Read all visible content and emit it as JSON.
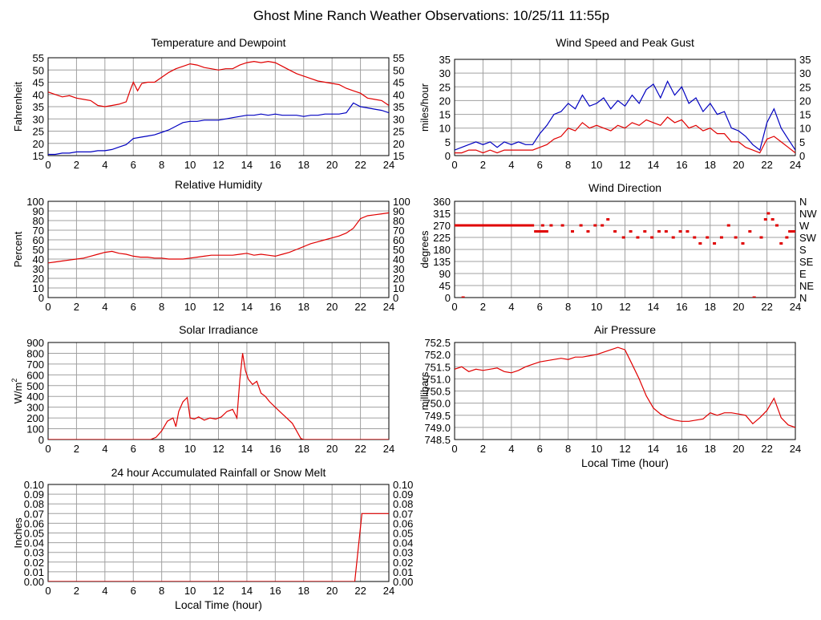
{
  "page_title": "Ghost Mine Ranch Weather Observations: 10/25/11 11:55p",
  "colors": {
    "grid": "#a0a0a0",
    "series_red": "#e00000",
    "series_blue": "#0000c0",
    "frame": "#000000"
  },
  "chart_data": [
    {
      "id": "temp",
      "type": "line",
      "title": "Temperature and Dewpoint",
      "xlabel": "",
      "ylabel": "Fahrenheit",
      "xlim": [
        0,
        24
      ],
      "ylim": [
        15,
        55
      ],
      "xticks": [
        0,
        2,
        4,
        6,
        8,
        10,
        12,
        14,
        16,
        18,
        20,
        22,
        24
      ],
      "yticks": [
        15,
        20,
        25,
        30,
        35,
        40,
        45,
        50,
        55
      ],
      "right_axis": true,
      "series": [
        {
          "color": "#e00000",
          "x": [
            0,
            0.5,
            1,
            1.5,
            2,
            2.5,
            3,
            3.5,
            4,
            4.5,
            5,
            5.5,
            5.8,
            6,
            6.3,
            6.6,
            7,
            7.5,
            8,
            8.5,
            9,
            9.5,
            10,
            10.5,
            11,
            11.5,
            12,
            12.5,
            13,
            13.5,
            14,
            14.5,
            15,
            15.5,
            16,
            16.5,
            17,
            17.5,
            18,
            18.5,
            19,
            19.5,
            20,
            20.5,
            21,
            21.5,
            22,
            22.5,
            23,
            23.5,
            24
          ],
          "values": [
            41,
            40,
            39,
            39.5,
            38.5,
            38,
            37.5,
            35.5,
            35,
            35.5,
            36,
            37,
            42,
            45,
            41.5,
            44.5,
            45,
            45,
            47,
            49,
            50.5,
            51.5,
            52.5,
            52,
            51,
            50.5,
            50,
            50.5,
            50.5,
            52,
            53,
            53.5,
            53,
            53.5,
            53,
            51.5,
            50,
            48.5,
            47.5,
            46.5,
            45.5,
            45,
            44.5,
            44,
            42.5,
            41.5,
            40.5,
            38.5,
            38,
            37.5,
            35.5
          ]
        },
        {
          "color": "#0000c0",
          "x": [
            0,
            0.5,
            1,
            1.5,
            2,
            2.5,
            3,
            3.5,
            4,
            4.5,
            5,
            5.5,
            6,
            6.5,
            7,
            7.5,
            8,
            8.5,
            9,
            9.5,
            10,
            10.5,
            11,
            11.5,
            12,
            12.5,
            13,
            13.5,
            14,
            14.5,
            15,
            15.5,
            16,
            16.5,
            17,
            17.5,
            18,
            18.5,
            19,
            19.5,
            20,
            20.5,
            21,
            21.5,
            22,
            22.5,
            23,
            23.5,
            24
          ],
          "values": [
            15.5,
            15.5,
            16,
            16,
            16.5,
            16.5,
            16.5,
            17,
            17,
            17.5,
            18.5,
            19.5,
            22,
            22.5,
            23,
            23.5,
            24.5,
            25.5,
            27,
            28.5,
            29,
            29,
            29.5,
            29.5,
            29.5,
            30,
            30.5,
            31,
            31.5,
            31.5,
            32,
            31.5,
            32,
            31.5,
            31.5,
            31.5,
            31,
            31.5,
            31.5,
            32,
            32,
            32,
            32.5,
            36.5,
            35,
            34.5,
            34,
            33.5,
            32.5
          ]
        }
      ]
    },
    {
      "id": "wind",
      "type": "line",
      "title": "Wind Speed and Peak Gust",
      "xlabel": "",
      "ylabel": "miles/hour",
      "xlim": [
        0,
        24
      ],
      "ylim": [
        0,
        35
      ],
      "xticks": [
        0,
        2,
        4,
        6,
        8,
        10,
        12,
        14,
        16,
        18,
        20,
        22,
        24
      ],
      "yticks": [
        0,
        5,
        10,
        15,
        20,
        25,
        30,
        35
      ],
      "right_axis": true,
      "series": [
        {
          "color": "#0000c0",
          "x": [
            0,
            0.5,
            1,
            1.5,
            2,
            2.5,
            3,
            3.5,
            4,
            4.5,
            5,
            5.5,
            6,
            6.5,
            7,
            7.5,
            8,
            8.5,
            9,
            9.5,
            10,
            10.5,
            11,
            11.5,
            12,
            12.5,
            13,
            13.5,
            14,
            14.5,
            15,
            15.5,
            16,
            16.5,
            17,
            17.5,
            18,
            18.5,
            19,
            19.5,
            20,
            20.5,
            21,
            21.5,
            22,
            22.5,
            23,
            23.5,
            24
          ],
          "values": [
            2,
            3,
            4,
            5,
            4,
            5,
            3,
            5,
            4,
            5,
            4,
            4,
            8,
            11,
            15,
            16,
            19,
            17,
            22,
            18,
            19,
            21,
            17,
            20,
            18,
            22,
            19,
            24,
            26,
            21,
            27,
            22,
            25,
            19,
            21,
            16,
            19,
            15,
            16,
            10,
            9,
            7,
            4,
            2,
            12,
            17,
            10,
            6,
            2
          ]
        },
        {
          "color": "#e00000",
          "x": [
            0,
            0.5,
            1,
            1.5,
            2,
            2.5,
            3,
            3.5,
            4,
            4.5,
            5,
            5.5,
            6,
            6.5,
            7,
            7.5,
            8,
            8.5,
            9,
            9.5,
            10,
            10.5,
            11,
            11.5,
            12,
            12.5,
            13,
            13.5,
            14,
            14.5,
            15,
            15.5,
            16,
            16.5,
            17,
            17.5,
            18,
            18.5,
            19,
            19.5,
            20,
            20.5,
            21,
            21.5,
            22,
            22.5,
            23,
            23.5,
            24
          ],
          "values": [
            1,
            1,
            2,
            2,
            1,
            2,
            1,
            2,
            2,
            2,
            2,
            2,
            3,
            4,
            6,
            7,
            10,
            9,
            12,
            10,
            11,
            10,
            9,
            11,
            10,
            12,
            11,
            13,
            12,
            11,
            14,
            12,
            13,
            10,
            11,
            9,
            10,
            8,
            8,
            5,
            5,
            3,
            2,
            1,
            6,
            7,
            5,
            3,
            1
          ]
        }
      ]
    },
    {
      "id": "rh",
      "type": "line",
      "title": "Relative Humidity",
      "xlabel": "",
      "ylabel": "Percent",
      "xlim": [
        0,
        24
      ],
      "ylim": [
        0,
        100
      ],
      "xticks": [
        0,
        2,
        4,
        6,
        8,
        10,
        12,
        14,
        16,
        18,
        20,
        22,
        24
      ],
      "yticks": [
        0,
        10,
        20,
        30,
        40,
        50,
        60,
        70,
        80,
        90,
        100
      ],
      "right_axis": true,
      "series": [
        {
          "color": "#e00000",
          "x": [
            0,
            0.5,
            1,
            1.5,
            2,
            2.5,
            3,
            3.5,
            4,
            4.5,
            5,
            5.5,
            6,
            6.5,
            7,
            7.5,
            8,
            8.5,
            9,
            9.5,
            10,
            10.5,
            11,
            11.5,
            12,
            12.5,
            13,
            13.5,
            14,
            14.5,
            15,
            15.5,
            16,
            16.5,
            17,
            17.5,
            18,
            18.5,
            19,
            19.5,
            20,
            20.5,
            21,
            21.5,
            22,
            22.5,
            23,
            23.5,
            24
          ],
          "values": [
            36,
            37,
            38,
            39,
            40,
            41,
            43,
            45,
            47,
            48,
            46,
            45,
            43,
            42,
            42,
            41,
            41,
            40,
            40,
            40,
            41,
            42,
            43,
            44,
            44,
            44,
            44,
            45,
            46,
            44,
            45,
            44,
            43,
            45,
            47,
            50,
            53,
            56,
            58,
            60,
            62,
            64,
            67,
            72,
            82,
            85,
            86,
            87,
            88
          ]
        }
      ]
    },
    {
      "id": "wdir",
      "type": "scatter",
      "title": "Wind Direction",
      "xlabel": "",
      "ylabel": "degrees",
      "xlim": [
        0,
        24
      ],
      "ylim": [
        0,
        360
      ],
      "xticks": [
        0,
        2,
        4,
        6,
        8,
        10,
        12,
        14,
        16,
        18,
        20,
        22,
        24
      ],
      "yticks": [
        0,
        45,
        90,
        135,
        180,
        225,
        270,
        315,
        360
      ],
      "right_tick_labels": [
        "N",
        "NE",
        "E",
        "SE",
        "S",
        "SW",
        "W",
        "NW",
        "N"
      ],
      "series": [
        {
          "color": "#e00000",
          "x": [
            0.6,
            6.2,
            6.8,
            7.6,
            8.3,
            8.9,
            9.4,
            9.9,
            10.4,
            10.8,
            11.3,
            11.9,
            12.4,
            12.9,
            13.4,
            13.9,
            14.4,
            14.9,
            15.4,
            15.9,
            16.4,
            16.9,
            17.3,
            17.8,
            18.3,
            18.8,
            19.3,
            19.8,
            20.3,
            20.8,
            21.1,
            21.6,
            21.9,
            22.1,
            22.4,
            22.7,
            23.0,
            23.4,
            23.8
          ],
          "values": [
            0,
            270,
            270,
            270,
            247.5,
            270,
            247.5,
            270,
            270,
            292.5,
            247.5,
            225,
            247.5,
            225,
            247.5,
            225,
            247.5,
            247.5,
            225,
            247.5,
            247.5,
            225,
            202.5,
            225,
            202.5,
            225,
            270,
            225,
            202.5,
            247.5,
            0,
            225,
            292.5,
            315,
            292.5,
            270,
            202.5,
            225,
            247.5
          ]
        }
      ],
      "constant_segments": [
        {
          "x0": 0,
          "x1": 5.6,
          "value": 270
        },
        {
          "x0": 5.6,
          "x1": 6.6,
          "value": 247.5
        },
        {
          "x0": 23.5,
          "x1": 24,
          "value": 247.5
        }
      ]
    },
    {
      "id": "solar",
      "type": "line",
      "title": "Solar Irradiance",
      "xlabel": "",
      "ylabel": "W/m",
      "ylabel_superscript": "2",
      "xlim": [
        0,
        24
      ],
      "ylim": [
        0,
        900
      ],
      "xticks": [
        0,
        2,
        4,
        6,
        8,
        10,
        12,
        14,
        16,
        18,
        20,
        22,
        24
      ],
      "yticks": [
        0,
        100,
        200,
        300,
        400,
        500,
        600,
        700,
        800,
        900
      ],
      "right_axis": false,
      "series": [
        {
          "color": "#e00000",
          "x": [
            0,
            7.2,
            7.6,
            8.0,
            8.4,
            8.8,
            9.0,
            9.2,
            9.5,
            9.8,
            10.0,
            10.3,
            10.6,
            11.0,
            11.4,
            11.8,
            12.2,
            12.6,
            13.0,
            13.3,
            13.5,
            13.7,
            13.9,
            14.1,
            14.4,
            14.7,
            15.0,
            15.3,
            15.6,
            16.0,
            16.4,
            16.8,
            17.2,
            17.5,
            17.8,
            18.0,
            24
          ],
          "values": [
            0,
            0,
            20,
            80,
            170,
            200,
            120,
            260,
            350,
            390,
            200,
            190,
            210,
            180,
            200,
            190,
            210,
            260,
            280,
            200,
            550,
            800,
            640,
            560,
            510,
            540,
            430,
            400,
            350,
            300,
            250,
            200,
            150,
            80,
            10,
            0,
            0
          ]
        }
      ]
    },
    {
      "id": "pressure",
      "type": "line",
      "title": "Air Pressure",
      "xlabel": "Local Time (hour)",
      "ylabel": "millibars",
      "xlim": [
        0,
        24
      ],
      "ylim": [
        748.5,
        752.5
      ],
      "xticks": [
        0,
        2,
        4,
        6,
        8,
        10,
        12,
        14,
        16,
        18,
        20,
        22,
        24
      ],
      "yticks": [
        748.5,
        749.0,
        749.5,
        750.0,
        750.5,
        751.0,
        751.5,
        752.0,
        752.5
      ],
      "ytick_labels": [
        "748.5",
        "749.0",
        "749.5",
        "750.0",
        "750.5",
        "751.0",
        "751.5",
        "752.0",
        "752.5"
      ],
      "right_axis": false,
      "series": [
        {
          "color": "#e00000",
          "x": [
            0,
            0.5,
            1,
            1.5,
            2,
            2.5,
            3,
            3.5,
            4,
            4.5,
            5,
            5.5,
            6,
            6.5,
            7,
            7.5,
            8,
            8.5,
            9,
            9.5,
            10,
            10.5,
            11,
            11.5,
            12,
            12.5,
            13,
            13.5,
            14,
            14.5,
            15,
            15.5,
            16,
            16.5,
            17,
            17.5,
            18,
            18.5,
            19,
            19.5,
            20,
            20.5,
            21,
            21.5,
            22,
            22.5,
            23,
            23.5,
            24
          ],
          "values": [
            751.4,
            751.5,
            751.3,
            751.4,
            751.35,
            751.4,
            751.45,
            751.3,
            751.25,
            751.35,
            751.5,
            751.6,
            751.7,
            751.75,
            751.8,
            751.85,
            751.8,
            751.9,
            751.9,
            751.95,
            752.0,
            752.1,
            752.2,
            752.3,
            752.2,
            751.6,
            751.0,
            750.3,
            749.8,
            749.55,
            749.4,
            749.3,
            749.25,
            749.25,
            749.3,
            749.35,
            749.6,
            749.5,
            749.6,
            749.6,
            749.55,
            749.5,
            749.15,
            749.4,
            749.7,
            750.2,
            749.4,
            749.1,
            749.0
          ]
        }
      ]
    },
    {
      "id": "rain",
      "type": "line",
      "title": "24 hour Accumulated Rainfall or Snow Melt",
      "xlabel": "Local Time (hour)",
      "ylabel": "Inches",
      "xlim": [
        0,
        24
      ],
      "ylim": [
        0,
        0.1
      ],
      "xticks": [
        0,
        2,
        4,
        6,
        8,
        10,
        12,
        14,
        16,
        18,
        20,
        22,
        24
      ],
      "yticks": [
        0,
        0.01,
        0.02,
        0.03,
        0.04,
        0.05,
        0.06,
        0.07,
        0.08,
        0.09,
        0.1
      ],
      "ytick_labels": [
        "0.00",
        "0.01",
        "0.02",
        "0.03",
        "0.04",
        "0.05",
        "0.06",
        "0.07",
        "0.08",
        "0.09",
        "0.10"
      ],
      "right_axis": true,
      "series": [
        {
          "color": "#e00000",
          "x": [
            0,
            21.6,
            22.1,
            24
          ],
          "values": [
            0,
            0,
            0.07,
            0.07
          ]
        }
      ]
    }
  ]
}
